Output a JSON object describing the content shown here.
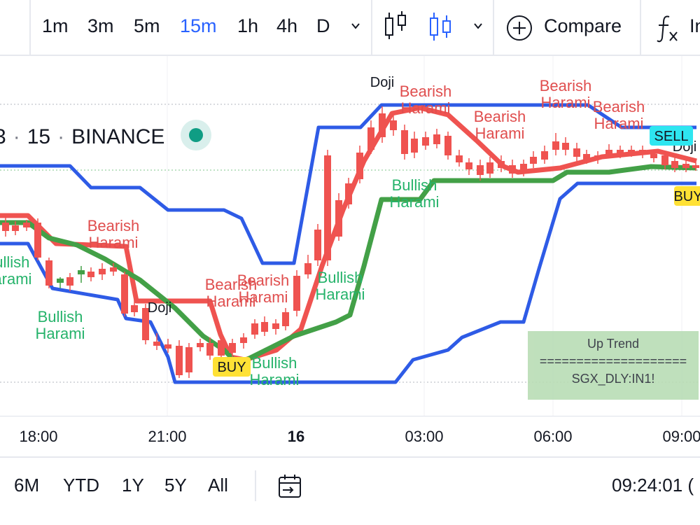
{
  "toolbar": {
    "timeframes": [
      "1m",
      "3m",
      "5m",
      "15m",
      "1h",
      "4h",
      "D"
    ],
    "active_timeframe": "15m",
    "compare_label": "Compare",
    "indicators_label": "In",
    "icons": [
      "chevron-down-icon",
      "bar-chart-icon",
      "candlestick-icon",
      "plus-circle-icon",
      "fx-icon"
    ],
    "accent_color": "#2962ff"
  },
  "legend": {
    "interval": "15",
    "exchange": "BINANCE",
    "separator": "·",
    "leading_fragment": "3"
  },
  "chart_data": {
    "type": "candlestick",
    "colors": {
      "up": "#43a047",
      "down": "#ef5350",
      "band": "#2e5be6",
      "fast_ma": "#ef5350",
      "slow_ma": "#43a047"
    },
    "labels": [
      {
        "text": "Bearish Harami",
        "color": "#e04e4e"
      },
      {
        "text": "Bullish Harami",
        "color": "#26b36b"
      },
      {
        "text": "Doji",
        "color": "#131722"
      },
      {
        "text": "BUY",
        "color": "#ffe135"
      },
      {
        "text": "SELL",
        "color": "#2ee6f0"
      }
    ],
    "trend_box": {
      "title": "Up Trend",
      "divider": "====================",
      "symbol": "SGX_DLY:IN1!",
      "color": "#b5dcb1"
    }
  },
  "time_axis": {
    "ticks": [
      {
        "label": "18:00",
        "bold": false
      },
      {
        "label": "21:00",
        "bold": false
      },
      {
        "label": "16",
        "bold": true
      },
      {
        "label": "03:00",
        "bold": false
      },
      {
        "label": "06:00",
        "bold": false
      },
      {
        "label": "09:00",
        "bold": false
      }
    ]
  },
  "bottombar": {
    "ranges": [
      "6M",
      "YTD",
      "1Y",
      "5Y",
      "All"
    ],
    "clock": "09:24:01 ("
  }
}
